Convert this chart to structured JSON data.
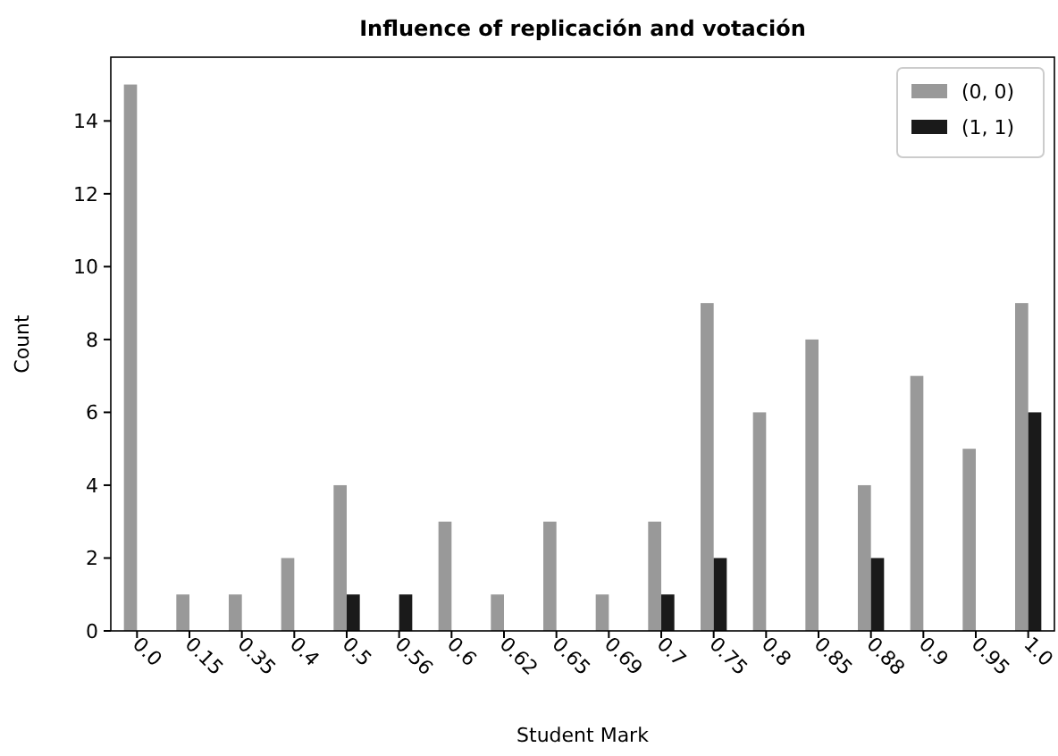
{
  "chart_data": {
    "type": "bar",
    "title": "Influence of replicación and votación",
    "xlabel": "Student Mark",
    "ylabel": "Count",
    "categories": [
      "0.0",
      "0.15",
      "0.35",
      "0.4",
      "0.5",
      "0.56",
      "0.6",
      "0.62",
      "0.65",
      "0.69",
      "0.7",
      "0.75",
      "0.8",
      "0.85",
      "0.88",
      "0.9",
      "0.95",
      "1.0"
    ],
    "series": [
      {
        "name": "(0, 0)",
        "color": "#999999",
        "values": [
          15,
          1,
          1,
          2,
          4,
          null,
          3,
          1,
          3,
          1,
          3,
          9,
          6,
          8,
          4,
          7,
          5,
          9
        ]
      },
      {
        "name": "(1, 1)",
        "color": "#1a1a1a",
        "values": [
          null,
          null,
          null,
          null,
          1,
          1,
          null,
          null,
          null,
          null,
          1,
          2,
          null,
          null,
          2,
          null,
          null,
          6
        ]
      }
    ],
    "ylim": [
      0,
      15.75
    ],
    "yticks": [
      0,
      2,
      4,
      6,
      8,
      10,
      12,
      14
    ],
    "legend": "top right"
  }
}
